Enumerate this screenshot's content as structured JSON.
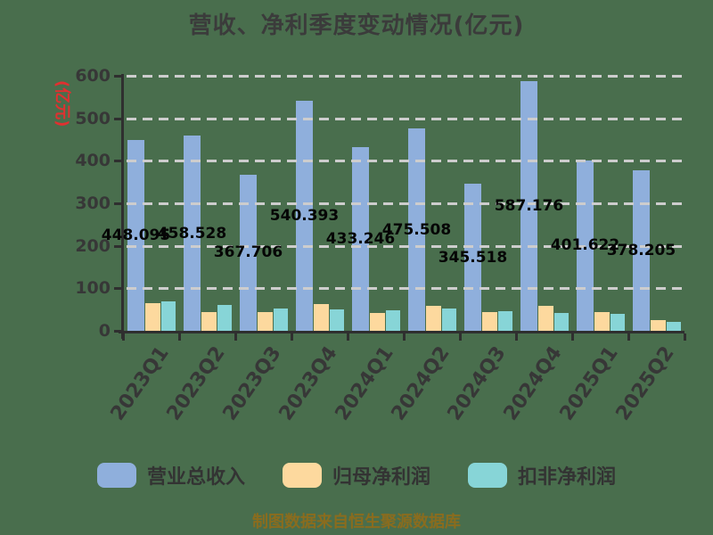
{
  "title": "营收、净利季度变动情况(亿元)",
  "y_axis_unit": "(亿元)",
  "footer_note": "制图数据来自恒生聚源数据库",
  "colors": {
    "background": "#496e4d",
    "revenue_bar": "#8fafdc",
    "net_profit_bar": "#fdd99e",
    "non_gaap_bar": "#87d5d7",
    "gridline": "#cdcdcd",
    "axis": "#2f2f2f",
    "axis_text": "#373737",
    "value_label_text": "#060606",
    "unit_label_text": "#e03030",
    "footer_text": "#8a6c1e"
  },
  "chart_data": {
    "type": "bar",
    "title": "营收、净利季度变动情况(亿元)",
    "y_unit": "亿元",
    "categories": [
      "2023Q1",
      "2023Q2",
      "2023Q3",
      "2023Q4",
      "2024Q1",
      "2024Q2",
      "2024Q3",
      "2024Q4",
      "2025Q1",
      "2025Q2"
    ],
    "series": [
      {
        "id": "revenue",
        "name": "营业总收入",
        "color": "#8fafdc",
        "values": [
          448.095,
          458.528,
          367.706,
          540.393,
          433.246,
          475.508,
          345.518,
          587.176,
          401.622,
          378.205
        ],
        "labels": [
          "448.095",
          "458.528",
          "367.706",
          "540.393",
          "433.246",
          "475.508",
          "345.518",
          "587.176",
          "401.622",
          "378.205"
        ],
        "show_labels": true
      },
      {
        "id": "net-profit",
        "name": "归母净利润",
        "color": "#fdd99e",
        "values": [
          65,
          44,
          45,
          64,
          42,
          58,
          45,
          58,
          44,
          25
        ],
        "show_labels": false
      },
      {
        "id": "non-gaap-profit",
        "name": "扣非净利润",
        "color": "#87d5d7",
        "values": [
          70,
          61,
          53,
          50,
          49,
          53,
          47,
          43,
          41,
          22
        ],
        "show_labels": false
      }
    ],
    "ylim": [
      0,
      600
    ],
    "yticks": [
      0,
      100,
      200,
      300,
      400,
      500,
      600
    ],
    "grid": "horizontal-dashed",
    "grid_over_bars": true,
    "legend_position": "bottom",
    "x_label_rotation_deg": -55
  }
}
